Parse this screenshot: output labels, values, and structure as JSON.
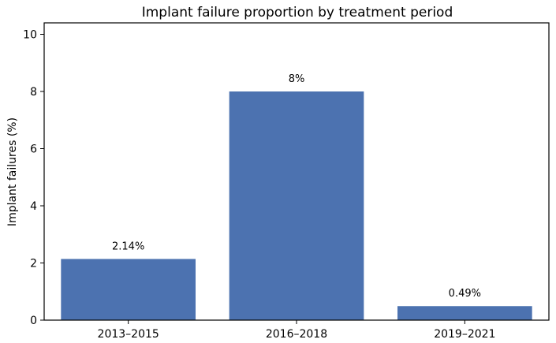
{
  "chart_data": {
    "type": "bar",
    "title": "Implant failure proportion by treatment period",
    "xlabel": "",
    "ylabel": "Implant failures (%)",
    "categories": [
      "2013–2015",
      "2016–2018",
      "2019–2021"
    ],
    "values": [
      2.14,
      8,
      0.49
    ],
    "data_labels": [
      "2.14%",
      "8%",
      "0.49%"
    ],
    "ylim": [
      0,
      10.4
    ],
    "yticks": [
      0,
      2,
      4,
      6,
      8,
      10
    ],
    "bar_color": "#4c72b0",
    "grid": false
  }
}
